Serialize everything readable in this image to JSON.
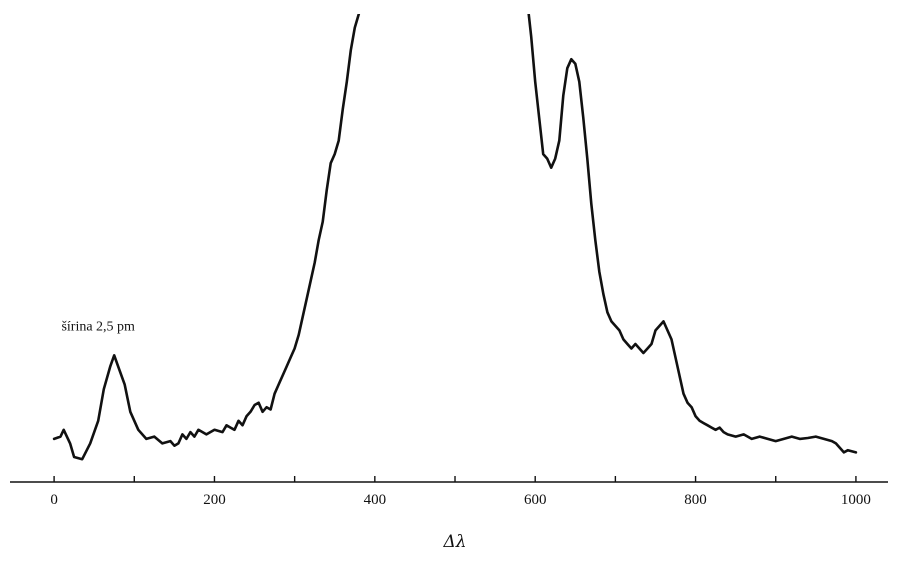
{
  "chart_data": {
    "type": "line",
    "xlabel": "Δλ",
    "ylabel": "",
    "xlim": [
      -55,
      1040
    ],
    "ylim": [
      0,
      100
    ],
    "xticks": [
      0,
      100,
      200,
      300,
      400,
      500,
      600,
      700,
      800,
      900,
      1000
    ],
    "xtick_labels": [
      "0",
      "",
      "200",
      "",
      "400",
      "",
      "600",
      "",
      "800",
      "",
      "1000"
    ],
    "grid": false,
    "annotations": [
      {
        "text": "šírina 2,5 pm",
        "x": 55,
        "y": 30
      }
    ],
    "series": [
      {
        "x": [
          0,
          8,
          12,
          20,
          25,
          35,
          45,
          55,
          62,
          70,
          75,
          80,
          88,
          95,
          105,
          115,
          125,
          135,
          145,
          150,
          155,
          160,
          165,
          170,
          175,
          180,
          190,
          200,
          210,
          215,
          220,
          225,
          230,
          235,
          240,
          245,
          250,
          255,
          260,
          265,
          270,
          275,
          280,
          285,
          290,
          295,
          300,
          305,
          310,
          315,
          320,
          325,
          330,
          335,
          340,
          345,
          350,
          355,
          360,
          365,
          370,
          375,
          380,
          383,
          590,
          595,
          600,
          605,
          610,
          615,
          620,
          625,
          630,
          635,
          640,
          645,
          650,
          655,
          660,
          665,
          670,
          675,
          680,
          685,
          690,
          695,
          700,
          705,
          710,
          715,
          720,
          725,
          730,
          735,
          740,
          745,
          750,
          755,
          760,
          765,
          770,
          775,
          780,
          785,
          790,
          795,
          800,
          805,
          810,
          815,
          820,
          825,
          830,
          835,
          840,
          850,
          860,
          870,
          880,
          890,
          900,
          910,
          920,
          930,
          940,
          950,
          960,
          970,
          975,
          980,
          985,
          990,
          1000
        ],
        "y": [
          6,
          6.5,
          8,
          5,
          2,
          1.5,
          5,
          10,
          17,
          22,
          24.5,
          22,
          18,
          12,
          8,
          6,
          6.5,
          5,
          5.5,
          4.5,
          5,
          7,
          6,
          7.5,
          6.5,
          8,
          7,
          8,
          7.5,
          9,
          8.5,
          8,
          10,
          9,
          11,
          12,
          13.5,
          14,
          12,
          13,
          12.5,
          16,
          18,
          20,
          22,
          24,
          26,
          29,
          33,
          37,
          41,
          45,
          50,
          54,
          61,
          67,
          69,
          72,
          79,
          85,
          92,
          97,
          100,
          103,
          103,
          95,
          85,
          77,
          69,
          68,
          66,
          68,
          72,
          82,
          88,
          90,
          89,
          85,
          77,
          68,
          58,
          50,
          43,
          38,
          34,
          32,
          31,
          30,
          28,
          27,
          26,
          27,
          26,
          25,
          26,
          27,
          30,
          31,
          32,
          30,
          28,
          24,
          20,
          16,
          14,
          13,
          11,
          10,
          9.5,
          9,
          8.5,
          8,
          8.5,
          7.5,
          7,
          6.5,
          7,
          6,
          6.5,
          6,
          5.5,
          6,
          6.5,
          6,
          6.2,
          6.5,
          6,
          5.5,
          5,
          4,
          3,
          3.5,
          3
        ]
      }
    ]
  }
}
